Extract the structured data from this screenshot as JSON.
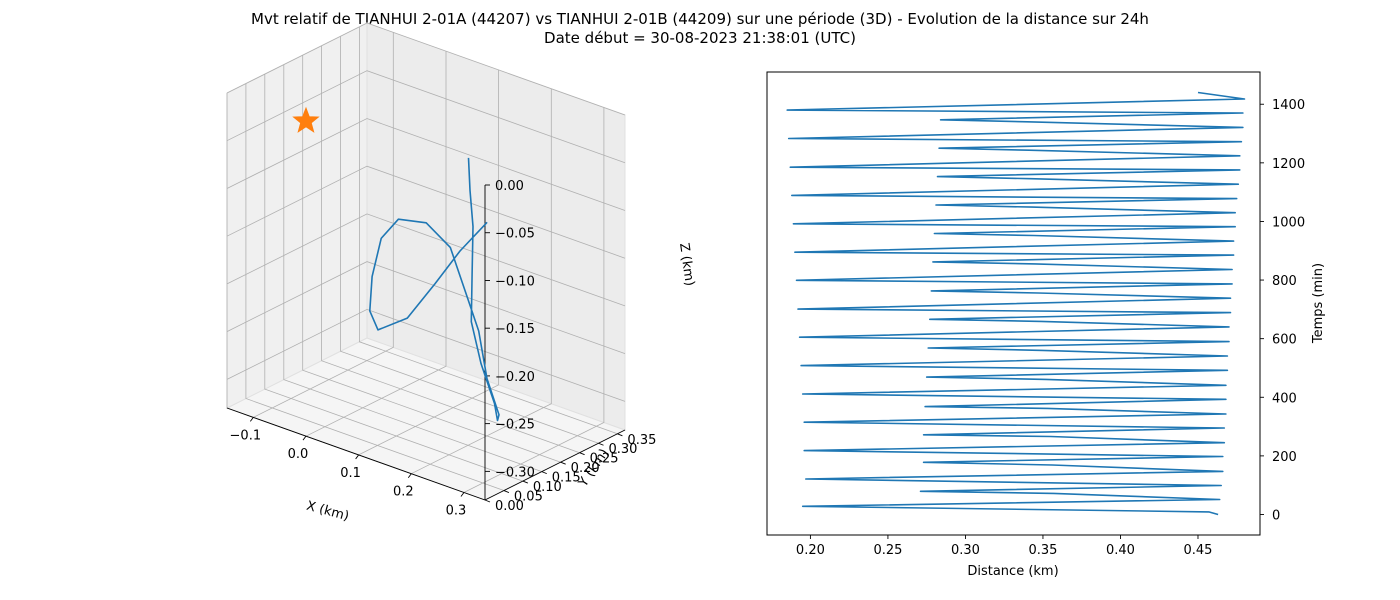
{
  "title": "Mvt relatif de TIANHUI 2-01A (44207) vs TIANHUI 2-01B (44209) sur une période (3D) - Evolution de la distance sur 24h",
  "subtitle": "Date début = 30-08-2023 21:38:01 (UTC)",
  "colors": {
    "series": "#1f77b4",
    "marker": "#ff7f0e",
    "pane": "#f2f2f2",
    "grid": "#b0b0b0"
  },
  "chart_data": [
    {
      "type": "line3d",
      "xlabel": "X (km)",
      "ylabel": "Y (km)",
      "zlabel": "Z (km)",
      "x_ticks": [
        "−0.1",
        "0.0",
        "0.1",
        "0.2",
        "0.3"
      ],
      "y_ticks": [
        "0.00",
        "0.05",
        "0.10",
        "0.15",
        "0.20",
        "0.25",
        "0.30",
        "0.35"
      ],
      "z_ticks": [
        "0.00",
        "−0.05",
        "−0.10",
        "−0.15",
        "−0.20",
        "−0.25",
        "−0.30"
      ],
      "xlim": [
        -0.15,
        0.34
      ],
      "ylim": [
        0.0,
        0.37
      ],
      "zlim": [
        -0.33,
        0.0
      ],
      "grid": true,
      "marker": {
        "shape": "star",
        "label": "origin"
      },
      "path": [
        {
          "x": 0.05,
          "y": 0.36,
          "z": -0.1
        },
        {
          "x": 0.06,
          "y": 0.35,
          "z": -0.13
        },
        {
          "x": 0.08,
          "y": 0.33,
          "z": -0.16
        },
        {
          "x": 0.1,
          "y": 0.3,
          "z": -0.2
        },
        {
          "x": 0.12,
          "y": 0.27,
          "z": -0.24
        },
        {
          "x": 0.16,
          "y": 0.24,
          "z": -0.27
        },
        {
          "x": 0.2,
          "y": 0.22,
          "z": -0.3
        },
        {
          "x": 0.22,
          "y": 0.2,
          "z": -0.31
        },
        {
          "x": 0.23,
          "y": 0.19,
          "z": -0.3
        },
        {
          "x": 0.2,
          "y": 0.2,
          "z": -0.27
        },
        {
          "x": 0.17,
          "y": 0.22,
          "z": -0.23
        },
        {
          "x": 0.13,
          "y": 0.24,
          "z": -0.2
        },
        {
          "x": 0.08,
          "y": 0.27,
          "z": -0.17
        },
        {
          "x": 0.02,
          "y": 0.29,
          "z": -0.16
        },
        {
          "x": -0.04,
          "y": 0.3,
          "z": -0.17
        },
        {
          "x": -0.08,
          "y": 0.31,
          "z": -0.2
        },
        {
          "x": -0.09,
          "y": 0.3,
          "z": -0.24
        },
        {
          "x": -0.08,
          "y": 0.28,
          "z": -0.27
        },
        {
          "x": -0.05,
          "y": 0.26,
          "z": -0.28
        },
        {
          "x": 0.02,
          "y": 0.24,
          "z": -0.25
        },
        {
          "x": 0.08,
          "y": 0.23,
          "z": -0.2
        },
        {
          "x": 0.12,
          "y": 0.24,
          "z": -0.16
        },
        {
          "x": 0.15,
          "y": 0.27,
          "z": -0.13
        }
      ]
    },
    {
      "type": "line",
      "xlabel": "Distance (km)",
      "ylabel": "Temps (min)",
      "x_ticks": [
        "0.20",
        "0.25",
        "0.30",
        "0.35",
        "0.40",
        "0.45"
      ],
      "y_ticks": [
        "0",
        "200",
        "400",
        "600",
        "800",
        "1000",
        "1200",
        "1400"
      ],
      "xlim": [
        0.172,
        0.49
      ],
      "ylim": [
        -70,
        1510
      ],
      "grid": false,
      "y_axis_side": "right",
      "minor_period_min": 48.5,
      "minor_turning_points": [
        {
          "t": 0,
          "d": 0.463
        },
        {
          "t": 9,
          "d": 0.457
        },
        {
          "t": 28,
          "d": 0.195
        },
        {
          "t": 51,
          "d": 0.464
        },
        {
          "t": 72,
          "d": 0.357
        },
        {
          "t": 79,
          "d": 0.271
        },
        {
          "t": 99,
          "d": 0.465
        },
        {
          "t": 121,
          "d": 0.197
        },
        {
          "t": 147,
          "d": 0.466
        },
        {
          "t": 169,
          "d": 0.356
        },
        {
          "t": 178,
          "d": 0.273
        },
        {
          "t": 198,
          "d": 0.466
        },
        {
          "t": 218,
          "d": 0.196
        },
        {
          "t": 245,
          "d": 0.467
        },
        {
          "t": 266,
          "d": 0.355
        },
        {
          "t": 272,
          "d": 0.273
        },
        {
          "t": 295,
          "d": 0.467
        },
        {
          "t": 315,
          "d": 0.196
        },
        {
          "t": 343,
          "d": 0.468
        },
        {
          "t": 362,
          "d": 0.353
        },
        {
          "t": 368,
          "d": 0.274
        },
        {
          "t": 393,
          "d": 0.468
        },
        {
          "t": 411,
          "d": 0.195
        },
        {
          "t": 441,
          "d": 0.468
        },
        {
          "t": 461,
          "d": 0.352
        },
        {
          "t": 469,
          "d": 0.275
        },
        {
          "t": 492,
          "d": 0.469
        },
        {
          "t": 508,
          "d": 0.194
        },
        {
          "t": 541,
          "d": 0.469
        },
        {
          "t": 560,
          "d": 0.35
        },
        {
          "t": 568,
          "d": 0.276
        },
        {
          "t": 590,
          "d": 0.47
        },
        {
          "t": 605,
          "d": 0.193
        },
        {
          "t": 640,
          "d": 0.47
        },
        {
          "t": 659,
          "d": 0.349
        },
        {
          "t": 666,
          "d": 0.277
        },
        {
          "t": 689,
          "d": 0.471
        },
        {
          "t": 701,
          "d": 0.192
        },
        {
          "t": 738,
          "d": 0.471
        },
        {
          "t": 756,
          "d": 0.347
        },
        {
          "t": 763,
          "d": 0.278
        },
        {
          "t": 787,
          "d": 0.472
        },
        {
          "t": 799,
          "d": 0.191
        },
        {
          "t": 836,
          "d": 0.472
        },
        {
          "t": 855,
          "d": 0.345
        },
        {
          "t": 862,
          "d": 0.279
        },
        {
          "t": 885,
          "d": 0.473
        },
        {
          "t": 895,
          "d": 0.19
        },
        {
          "t": 933,
          "d": 0.473
        },
        {
          "t": 952,
          "d": 0.344
        },
        {
          "t": 959,
          "d": 0.28
        },
        {
          "t": 982,
          "d": 0.474
        },
        {
          "t": 992,
          "d": 0.189
        },
        {
          "t": 1030,
          "d": 0.474
        },
        {
          "t": 1049,
          "d": 0.343
        },
        {
          "t": 1056,
          "d": 0.281
        },
        {
          "t": 1078,
          "d": 0.475
        },
        {
          "t": 1089,
          "d": 0.188
        },
        {
          "t": 1127,
          "d": 0.476
        },
        {
          "t": 1146,
          "d": 0.342
        },
        {
          "t": 1153,
          "d": 0.282
        },
        {
          "t": 1176,
          "d": 0.477
        },
        {
          "t": 1185,
          "d": 0.187
        },
        {
          "t": 1224,
          "d": 0.477
        },
        {
          "t": 1243,
          "d": 0.341
        },
        {
          "t": 1250,
          "d": 0.283
        },
        {
          "t": 1272,
          "d": 0.478
        },
        {
          "t": 1283,
          "d": 0.186
        },
        {
          "t": 1321,
          "d": 0.479
        },
        {
          "t": 1340,
          "d": 0.34
        },
        {
          "t": 1347,
          "d": 0.284
        },
        {
          "t": 1370,
          "d": 0.479
        },
        {
          "t": 1380,
          "d": 0.185
        },
        {
          "t": 1418,
          "d": 0.48
        },
        {
          "t": 1440,
          "d": 0.45
        }
      ]
    }
  ]
}
